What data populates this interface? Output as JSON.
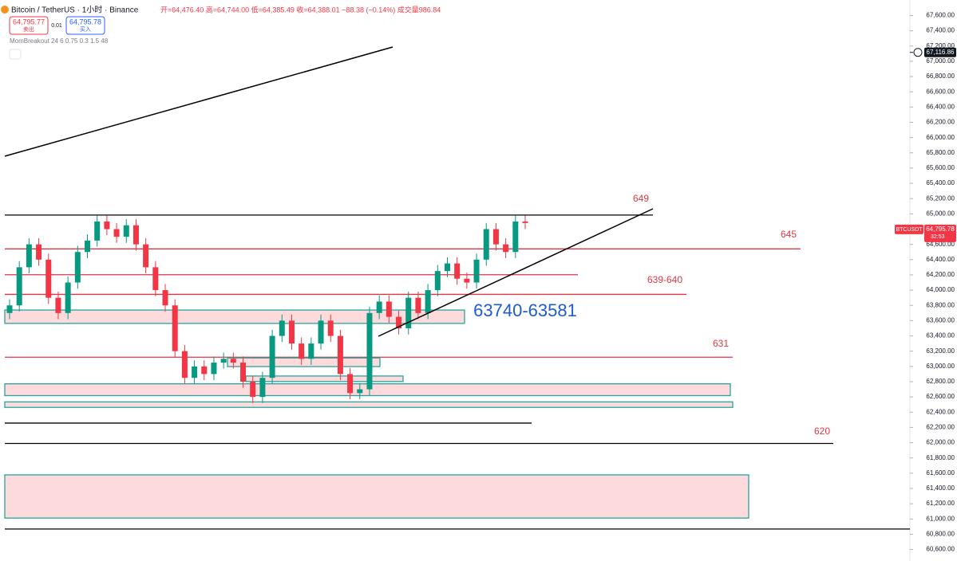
{
  "header": {
    "symbol": "Bitcoin / TetherUS · 1小时 · Binance",
    "ohlc": "开=64,476.40 高=64,744.00 低=64,385.49 收=64,388.01 −88.38 (−0.14%) 成交量986.84",
    "sell_price": "64,795.77",
    "sell_label": "卖出",
    "spread": "0.01",
    "buy_price": "64,795.78",
    "buy_label": "买入",
    "indicator": "MomBreakout 24 6 0.75 0.3 1.5 48"
  },
  "chart_data": {
    "type": "candlestick",
    "open": [
      63700,
      63800,
      64300,
      64600,
      64400,
      63900,
      63700,
      64100,
      64500,
      64650,
      64900,
      64800,
      64700,
      64850,
      64600,
      64300,
      64000,
      63800,
      63200,
      62850,
      63000,
      62900,
      63050,
      63100,
      63050,
      62800,
      62600,
      62850,
      63400,
      63600,
      63300,
      63100,
      63300,
      63600,
      63400,
      62900,
      62650,
      62700,
      63700,
      63850,
      63650,
      63500,
      63900,
      63700,
      64000,
      64250,
      64350,
      64150,
      64100,
      64400,
      64800,
      64600,
      64500,
      64900
    ],
    "high": [
      63880,
      64380,
      64680,
      64680,
      64480,
      63980,
      64180,
      64580,
      64730,
      64980,
      64980,
      64880,
      64930,
      64930,
      64680,
      64380,
      64080,
      63880,
      63280,
      63080,
      63080,
      63130,
      63180,
      63180,
      63130,
      62880,
      62930,
      63480,
      63680,
      63680,
      63380,
      63380,
      63680,
      63680,
      63480,
      62980,
      62780,
      63780,
      63930,
      63930,
      63730,
      63980,
      63980,
      64080,
      64330,
      64430,
      64430,
      64230,
      64480,
      64880,
      64880,
      64680,
      64980,
      64980
    ],
    "low": [
      63620,
      63720,
      64220,
      64320,
      63820,
      63620,
      63620,
      64020,
      64420,
      64570,
      64720,
      64620,
      64620,
      64520,
      64220,
      63920,
      63720,
      63120,
      62770,
      62770,
      62820,
      62820,
      62970,
      62970,
      62720,
      62520,
      62520,
      62770,
      63320,
      63220,
      63020,
      63020,
      63220,
      63320,
      62820,
      62570,
      62570,
      62620,
      63620,
      63570,
      63420,
      63420,
      63620,
      63620,
      63920,
      64170,
      64070,
      64020,
      64020,
      64320,
      64520,
      64420,
      64420,
      64800
    ],
    "close": [
      63800,
      64300,
      64600,
      64400,
      63900,
      63700,
      64100,
      64500,
      64650,
      64900,
      64800,
      64700,
      64850,
      64600,
      64300,
      64000,
      63800,
      63200,
      62850,
      63000,
      62900,
      63050,
      63100,
      63050,
      62800,
      62600,
      62850,
      63400,
      63600,
      63300,
      63100,
      63300,
      63600,
      63400,
      62900,
      62650,
      62700,
      63700,
      63850,
      63650,
      63500,
      63900,
      63700,
      64000,
      64250,
      64350,
      64150,
      64100,
      64400,
      64800,
      64600,
      64500,
      64900,
      64880
    ],
    "up_color": "#089981",
    "down_color": "#f23645",
    "ylim": [
      60470,
      67720
    ],
    "yticks": [
      {
        "value": 67600,
        "label": "67,600.00"
      },
      {
        "value": 67400,
        "label": "67,400.00"
      },
      {
        "value": 67200,
        "label": "67,200.00"
      },
      {
        "value": 67000,
        "label": "67,000.00"
      },
      {
        "value": 66800,
        "label": "66,800.00"
      },
      {
        "value": 66600,
        "label": "66,600.00"
      },
      {
        "value": 66400,
        "label": "66,400.00"
      },
      {
        "value": 66200,
        "label": "66,200.00"
      },
      {
        "value": 66000,
        "label": "66,000.00"
      },
      {
        "value": 65800,
        "label": "65,800.00"
      },
      {
        "value": 65600,
        "label": "65,600.00"
      },
      {
        "value": 65400,
        "label": "65,400.00"
      },
      {
        "value": 65200,
        "label": "65,200.00"
      },
      {
        "value": 65000,
        "label": "65,000.00"
      },
      {
        "value": 64800,
        "label": "64,800.00"
      },
      {
        "value": 64600,
        "label": "64,600.00"
      },
      {
        "value": 64400,
        "label": "64,400.00"
      },
      {
        "value": 64200,
        "label": "64,200.00"
      },
      {
        "value": 64000,
        "label": "64,000.00"
      },
      {
        "value": 63800,
        "label": "63,800.00"
      },
      {
        "value": 63600,
        "label": "63,600.00"
      },
      {
        "value": 63400,
        "label": "63,400.00"
      },
      {
        "value": 63200,
        "label": "63,200.00"
      },
      {
        "value": 63000,
        "label": "63,000.00"
      },
      {
        "value": 62800,
        "label": "62,800.00"
      },
      {
        "value": 62600,
        "label": "62,600.00"
      },
      {
        "value": 62400,
        "label": "62,400.00"
      },
      {
        "value": 62200,
        "label": "62,200.00"
      },
      {
        "value": 62000,
        "label": "62,000.00"
      },
      {
        "value": 61800,
        "label": "61,800.00"
      },
      {
        "value": 61600,
        "label": "61,600.00"
      },
      {
        "value": 61400,
        "label": "61,400.00"
      },
      {
        "value": 61200,
        "label": "61,200.00"
      },
      {
        "value": 61000,
        "label": "61,000.00"
      },
      {
        "value": 60800,
        "label": "60,800.00"
      },
      {
        "value": 60600,
        "label": "60,600.00"
      }
    ],
    "levels": [
      64984,
      64541,
      64202,
      63944,
      63121,
      62257,
      61990,
      60868
    ],
    "zones": [
      [
        63739,
        63564
      ],
      [
        63111,
        62998
      ],
      [
        62874,
        62802
      ],
      [
        62772,
        62617
      ],
      [
        62535,
        62463
      ],
      [
        61578,
        61012
      ]
    ],
    "annotations": [
      "649",
      "645",
      "639-640",
      "63740-63581",
      "631",
      "620"
    ],
    "high_tag": {
      "value": 67116.86,
      "label": "67,116.86"
    },
    "last_tag": {
      "symbol": "BTCUSDT",
      "value": 64795.78,
      "label": "64,795.78",
      "countdown": "32:53"
    }
  }
}
